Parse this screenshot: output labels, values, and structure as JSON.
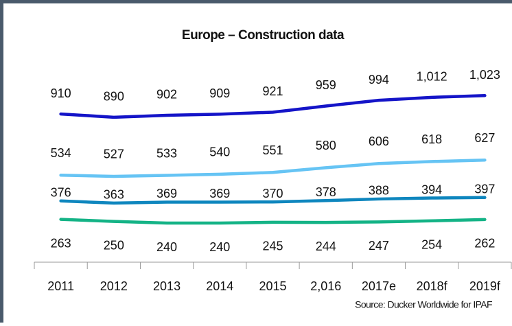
{
  "chart_data": {
    "type": "line",
    "title": "Europe – Construction data",
    "source": "Source: Ducker Worldwide for IPAF",
    "categories": [
      "2011",
      "2012",
      "2013",
      "2014",
      "2015",
      "2,016",
      "2017e",
      "2018f",
      "2019f"
    ],
    "series": [
      {
        "color": "#1414c8",
        "values": [
          910,
          890,
          902,
          909,
          921,
          959,
          994,
          1012,
          1023
        ],
        "value_labels": [
          "910",
          "890",
          "902",
          "909",
          "921",
          "959",
          "994",
          "1,012",
          "1,023"
        ]
      },
      {
        "color": "#66c4f4",
        "values": [
          534,
          527,
          533,
          540,
          551,
          580,
          606,
          618,
          627
        ]
      },
      {
        "color": "#0e86be",
        "values": [
          376,
          363,
          369,
          369,
          370,
          378,
          388,
          394,
          397
        ]
      },
      {
        "color": "#14b386",
        "values": [
          263,
          250,
          240,
          240,
          245,
          244,
          247,
          254,
          262
        ]
      }
    ],
    "ylim": [
      0,
      1100
    ]
  }
}
